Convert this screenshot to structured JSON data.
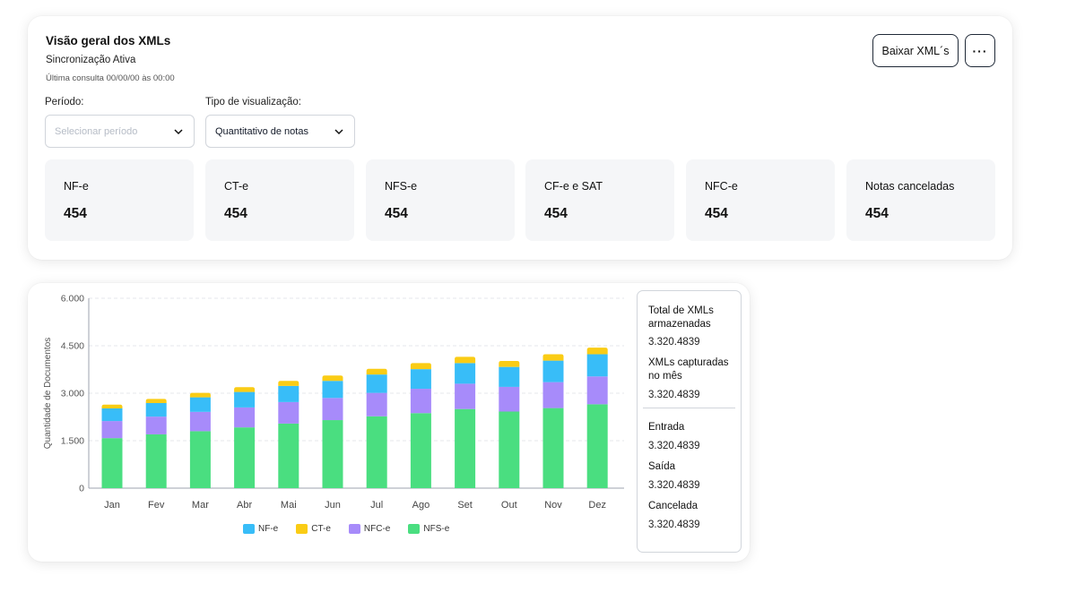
{
  "overview": {
    "title": "Visão geral dos XMLs",
    "subtitle": "Sincronização Ativa",
    "last_query": "Última consulta 00/00/00 às 00:00",
    "download_label": "Baixar XML´s",
    "more_icon": "more-horizontal-icon",
    "period": {
      "label": "Período:",
      "placeholder": "Selecionar período",
      "value": ""
    },
    "view_type": {
      "label": "Tipo de visualização:",
      "value": "Quantitativo de notas"
    },
    "stats": [
      {
        "label": "NF-e",
        "value": "454"
      },
      {
        "label": "CT-e",
        "value": "454"
      },
      {
        "label": "NFS-e",
        "value": "454"
      },
      {
        "label": "CF-e e SAT",
        "value": "454"
      },
      {
        "label": "NFC-e",
        "value": "454"
      },
      {
        "label": "Notas canceladas",
        "value": "454"
      }
    ]
  },
  "chart_data": {
    "type": "bar",
    "stacked": true,
    "ylabel": "Quantidade de Documentos",
    "ylim": [
      0,
      6000
    ],
    "yticks": [
      "0",
      "1.500",
      "3.000",
      "4.500",
      "6.000"
    ],
    "ytick_values": [
      0,
      1500,
      3000,
      4500,
      6000
    ],
    "grid": true,
    "legend_placement": "bottom",
    "categories": [
      "Jan",
      "Fev",
      "Mar",
      "Abr",
      "Mai",
      "Jun",
      "Jul",
      "Ago",
      "Set",
      "Out",
      "Nov",
      "Dez"
    ],
    "series": [
      {
        "name": "NFS-e",
        "color": "#4ade80",
        "values": [
          1580,
          1700,
          1800,
          1920,
          2040,
          2150,
          2270,
          2370,
          2500,
          2420,
          2530,
          2650
        ]
      },
      {
        "name": "NFC-e",
        "color": "#a78bfa",
        "values": [
          540,
          560,
          610,
          630,
          680,
          700,
          740,
          770,
          800,
          780,
          820,
          880
        ]
      },
      {
        "name": "NF-e",
        "color": "#38bdf8",
        "values": [
          400,
          430,
          460,
          490,
          510,
          540,
          580,
          620,
          650,
          630,
          680,
          700
        ]
      },
      {
        "name": "CT-e",
        "color": "#facc15",
        "values": [
          120,
          130,
          140,
          150,
          160,
          170,
          180,
          190,
          200,
          190,
          200,
          210
        ]
      }
    ],
    "legend_order": [
      "NF-e",
      "CT-e",
      "NFC-e",
      "NFS-e"
    ]
  },
  "summary": {
    "total_label": "Total de XMLs armazenadas",
    "total_value": "3.320.4839",
    "month_label": "XMLs capturadas no mês",
    "month_value": "3.320.4839",
    "entrada_label": "Entrada",
    "entrada_value": "3.320.4839",
    "saida_label": "Saída",
    "saida_value": "3.320.4839",
    "cancelada_label": "Cancelada",
    "cancelada_value": "3.320.4839"
  }
}
